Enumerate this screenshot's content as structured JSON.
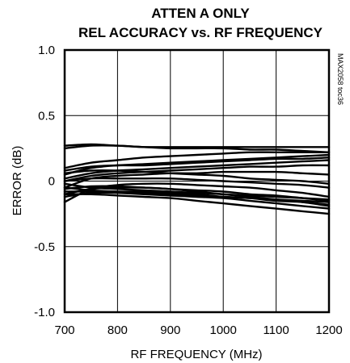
{
  "chart_data": {
    "type": "line",
    "title": "ATTEN A ONLY",
    "subtitle": "REL ACCURACY vs. RF FREQUENCY",
    "xlabel": "RF FREQUENCY (MHz)",
    "ylabel": "ERROR (dB)",
    "xlim": [
      700,
      1200
    ],
    "ylim": [
      -1.0,
      1.0
    ],
    "x_ticks": [
      "700",
      "800",
      "900",
      "1000",
      "1100",
      "1200"
    ],
    "y_ticks": [
      "1.0",
      "0.5",
      "0",
      "-0.5",
      "-1.0"
    ],
    "grid": true,
    "annotation": "MAX2058 toc36",
    "x": [
      700,
      750,
      800,
      850,
      900,
      950,
      1000,
      1050,
      1100,
      1150,
      1200
    ],
    "series": [
      {
        "values": [
          0.25,
          0.27,
          0.27,
          0.26,
          0.26,
          0.26,
          0.26,
          0.26,
          0.26,
          0.26,
          0.26
        ]
      },
      {
        "values": [
          0.27,
          0.28,
          0.27,
          0.26,
          0.25,
          0.25,
          0.25,
          0.24,
          0.24,
          0.23,
          0.22
        ]
      },
      {
        "values": [
          0.1,
          0.14,
          0.16,
          0.18,
          0.19,
          0.2,
          0.21,
          0.22,
          0.22,
          0.22,
          0.22
        ]
      },
      {
        "values": [
          0.05,
          0.1,
          0.12,
          0.13,
          0.14,
          0.15,
          0.16,
          0.17,
          0.18,
          0.19,
          0.2
        ]
      },
      {
        "values": [
          0.08,
          0.11,
          0.12,
          0.12,
          0.13,
          0.14,
          0.15,
          0.16,
          0.17,
          0.17,
          0.18
        ]
      },
      {
        "values": [
          0.02,
          0.06,
          0.08,
          0.09,
          0.1,
          0.11,
          0.12,
          0.13,
          0.14,
          0.15,
          0.16
        ]
      },
      {
        "values": [
          0.0,
          0.04,
          0.06,
          0.07,
          0.08,
          0.09,
          0.1,
          0.11,
          0.11,
          0.12,
          0.12
        ]
      },
      {
        "values": [
          -0.05,
          0.02,
          0.04,
          0.05,
          0.06,
          0.06,
          0.07,
          0.07,
          0.07,
          0.06,
          0.05
        ]
      },
      {
        "values": [
          0.06,
          0.08,
          0.08,
          0.07,
          0.06,
          0.05,
          0.04,
          0.02,
          0.01,
          0.0,
          -0.02
        ]
      },
      {
        "values": [
          0.0,
          0.02,
          0.02,
          0.02,
          0.02,
          0.01,
          0.0,
          -0.01,
          -0.02,
          -0.03,
          -0.05
        ]
      },
      {
        "values": [
          -0.16,
          -0.06,
          -0.03,
          -0.02,
          -0.02,
          -0.03,
          -0.04,
          -0.05,
          -0.07,
          -0.09,
          -0.12
        ]
      },
      {
        "values": [
          -0.1,
          -0.06,
          -0.05,
          -0.05,
          -0.06,
          -0.07,
          -0.08,
          -0.1,
          -0.11,
          -0.13,
          -0.15
        ]
      },
      {
        "values": [
          -0.05,
          -0.07,
          -0.08,
          -0.08,
          -0.09,
          -0.1,
          -0.12,
          -0.13,
          -0.15,
          -0.16,
          -0.18
        ]
      },
      {
        "values": [
          -0.08,
          -0.08,
          -0.09,
          -0.1,
          -0.11,
          -0.12,
          -0.13,
          -0.15,
          -0.17,
          -0.19,
          -0.21
        ]
      },
      {
        "values": [
          -0.12,
          -0.09,
          -0.09,
          -0.09,
          -0.1,
          -0.11,
          -0.12,
          -0.13,
          -0.14,
          -0.15,
          -0.16
        ]
      },
      {
        "values": [
          -0.02,
          -0.05,
          -0.06,
          -0.07,
          -0.08,
          -0.09,
          -0.1,
          -0.11,
          -0.12,
          -0.13,
          -0.14
        ]
      },
      {
        "values": [
          -0.06,
          -0.04,
          -0.04,
          -0.05,
          -0.06,
          -0.08,
          -0.1,
          -0.12,
          -0.14,
          -0.16,
          -0.19
        ]
      },
      {
        "values": [
          -0.1,
          -0.1,
          -0.11,
          -0.12,
          -0.13,
          -0.15,
          -0.17,
          -0.19,
          -0.21,
          -0.23,
          -0.25
        ]
      }
    ]
  }
}
